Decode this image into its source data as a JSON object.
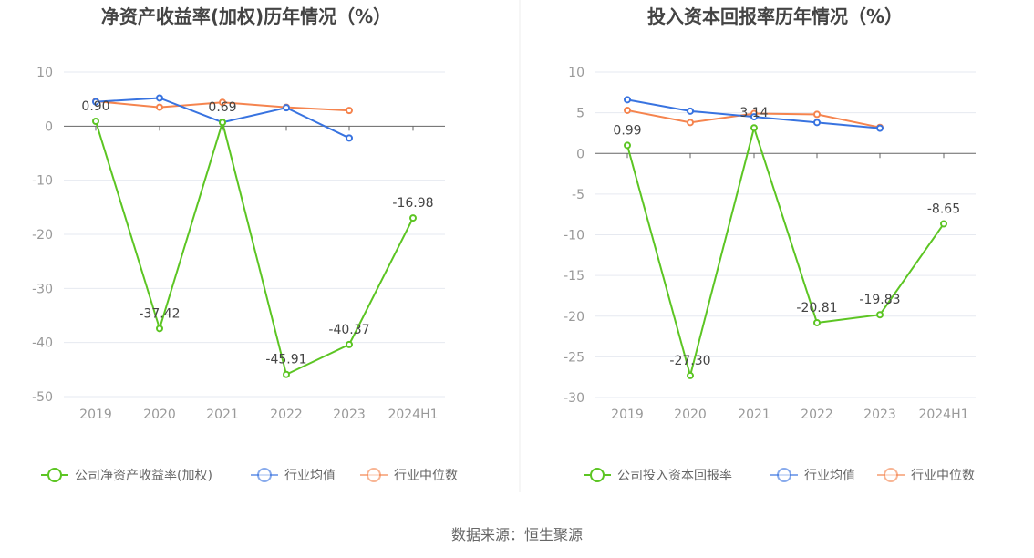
{
  "source": "数据来源：恒生聚源",
  "colors": {
    "company": "#5cc523",
    "avg": "#3873e0",
    "median": "#f5844e"
  },
  "chart_data": [
    {
      "type": "line",
      "title": "净资产收益率(加权)历年情况（%）",
      "categories": [
        "2019",
        "2020",
        "2021",
        "2022",
        "2023",
        "2024H1"
      ],
      "ylim": [
        -50,
        10
      ],
      "yticks": [
        10,
        0,
        -10,
        -20,
        -30,
        -40,
        -50
      ],
      "grid": true,
      "legend": "bottom",
      "series": [
        {
          "name": "公司净资产收益率(加权)",
          "values": [
            0.9,
            -37.42,
            0.69,
            -45.91,
            -40.37,
            -16.98
          ],
          "labels": [
            "0.90",
            "-37.42",
            "0.69",
            "-45.91",
            "-40.37",
            "-16.98"
          ]
        },
        {
          "name": "行业均值",
          "values": [
            4.5,
            5.2,
            0.7,
            3.4,
            -2.2,
            null
          ]
        },
        {
          "name": "行业中位数",
          "values": [
            4.6,
            3.5,
            4.4,
            3.5,
            2.9,
            null
          ]
        }
      ]
    },
    {
      "type": "line",
      "title": "投入资本回报率历年情况（%）",
      "categories": [
        "2019",
        "2020",
        "2021",
        "2022",
        "2023",
        "2024H1"
      ],
      "ylim": [
        -30,
        10
      ],
      "yticks": [
        10,
        5,
        0,
        -5,
        -10,
        -15,
        -20,
        -25,
        -30
      ],
      "grid": true,
      "legend": "bottom",
      "series": [
        {
          "name": "公司投入资本回报率",
          "values": [
            0.99,
            -27.3,
            3.14,
            -20.81,
            -19.83,
            -8.65
          ],
          "labels": [
            "0.99",
            "-27.30",
            "3.14",
            "-20.81",
            "-19.83",
            "-8.65"
          ]
        },
        {
          "name": "行业均值",
          "values": [
            6.6,
            5.2,
            4.5,
            3.8,
            3.1,
            null
          ]
        },
        {
          "name": "行业中位数",
          "values": [
            5.3,
            3.8,
            4.9,
            4.8,
            3.2,
            null
          ]
        }
      ]
    }
  ]
}
